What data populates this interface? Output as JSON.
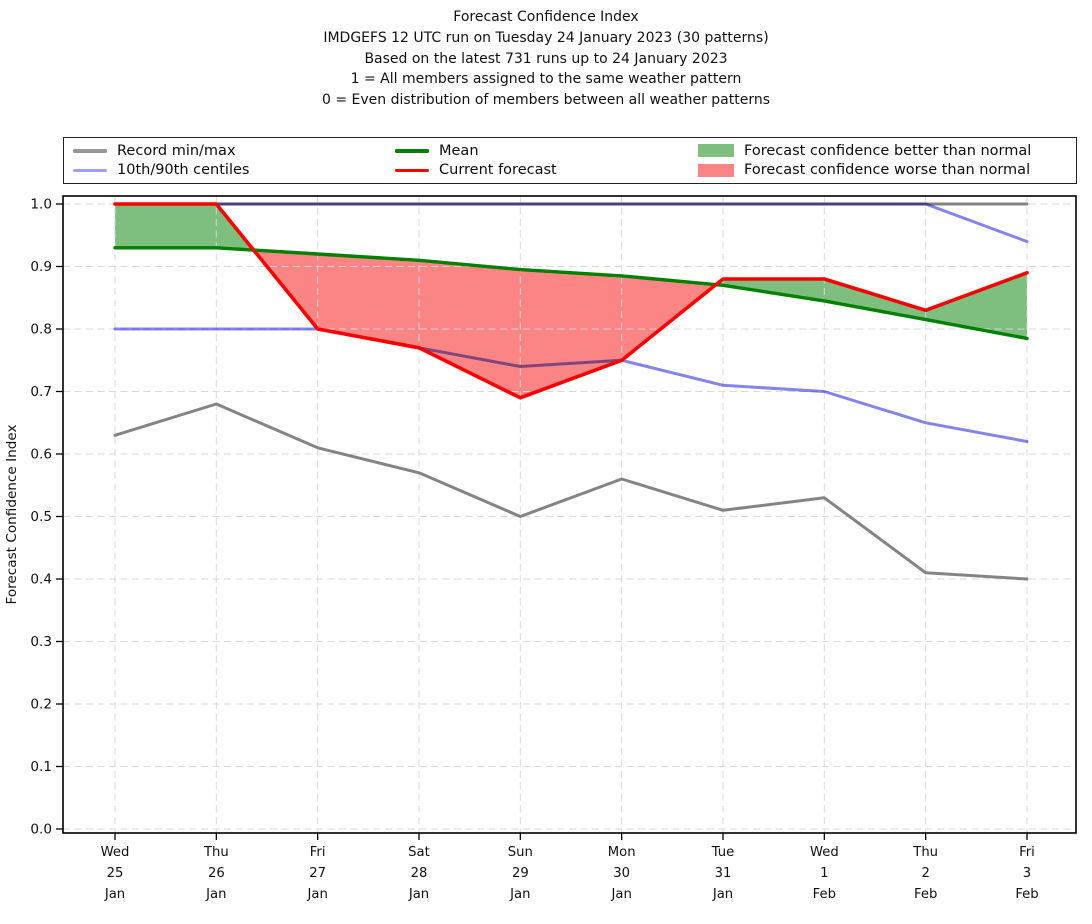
{
  "title": {
    "lines": [
      "Forecast Confidence Index",
      "IMDGEFS 12 UTC run on Tuesday 24 January 2023 (30 patterns)",
      "Based on the latest 731 runs up to 24 January 2023",
      "1 = All members assigned to the same weather pattern",
      "0 = Even distribution of members between all weather patterns"
    ]
  },
  "legend": {
    "entries": [
      {
        "label": "Record min/max",
        "type": "line",
        "color": "#969696"
      },
      {
        "label": "10th/90th centiles",
        "type": "line",
        "color": "#9f9ff4"
      },
      {
        "label": "Mean",
        "type": "line",
        "color": "#008000"
      },
      {
        "label": "Current forecast",
        "type": "line",
        "color": "#f80000"
      },
      {
        "label": "Forecast confidence better than normal",
        "type": "patch",
        "color": "#7ebe7e"
      },
      {
        "label": "Forecast confidence worse than normal",
        "type": "patch",
        "color": "#fb8585"
      }
    ]
  },
  "chart_data": {
    "type": "line",
    "title": "Forecast Confidence Index",
    "xlabel": "",
    "ylabel": "Forecast Confidence Index",
    "ylim": [
      0.0,
      1.0
    ],
    "yticks": [
      0.0,
      0.1,
      0.2,
      0.3,
      0.4,
      0.5,
      0.6,
      0.7,
      0.8,
      0.9,
      1.0
    ],
    "grid": true,
    "legend_position": "top",
    "x_categories": [
      [
        "Wed",
        "25",
        "Jan"
      ],
      [
        "Thu",
        "26",
        "Jan"
      ],
      [
        "Fri",
        "27",
        "Jan"
      ],
      [
        "Sat",
        "28",
        "Jan"
      ],
      [
        "Sun",
        "29",
        "Jan"
      ],
      [
        "Mon",
        "30",
        "Jan"
      ],
      [
        "Tue",
        "31",
        "Jan"
      ],
      [
        "Wed",
        "1",
        "Feb"
      ],
      [
        "Thu",
        "2",
        "Feb"
      ],
      [
        "Fri",
        "3",
        "Feb"
      ]
    ],
    "series": [
      {
        "name": "Record max",
        "color": "#848484",
        "values": [
          1.0,
          1.0,
          1.0,
          1.0,
          1.0,
          1.0,
          1.0,
          1.0,
          1.0,
          1.0
        ]
      },
      {
        "name": "Record min",
        "color": "#848484",
        "values": [
          0.63,
          0.68,
          0.61,
          0.57,
          0.5,
          0.56,
          0.51,
          0.53,
          0.41,
          0.4
        ]
      },
      {
        "name": "90th centile",
        "color": "#8484ec",
        "values": [
          1.0,
          1.0,
          1.0,
          1.0,
          1.0,
          1.0,
          1.0,
          1.0,
          1.0,
          0.94
        ]
      },
      {
        "name": "10th centile",
        "color": "#8484ec",
        "values": [
          0.8,
          0.8,
          0.8,
          0.77,
          0.74,
          0.75,
          0.71,
          0.7,
          0.65,
          0.62
        ]
      },
      {
        "name": "Mean",
        "color": "#008000",
        "values": [
          0.93,
          0.93,
          0.92,
          0.91,
          0.895,
          0.885,
          0.87,
          0.845,
          0.815,
          0.785
        ]
      },
      {
        "name": "Current forecast",
        "color": "#f80000",
        "values": [
          1.0,
          1.0,
          0.8,
          0.77,
          0.69,
          0.75,
          0.88,
          0.88,
          0.83,
          0.89
        ]
      }
    ],
    "fills": {
      "between": [
        "Current forecast",
        "Mean"
      ],
      "better_than_normal_color": "#7ebe7e",
      "worse_than_normal_color": "#fb8585"
    }
  }
}
